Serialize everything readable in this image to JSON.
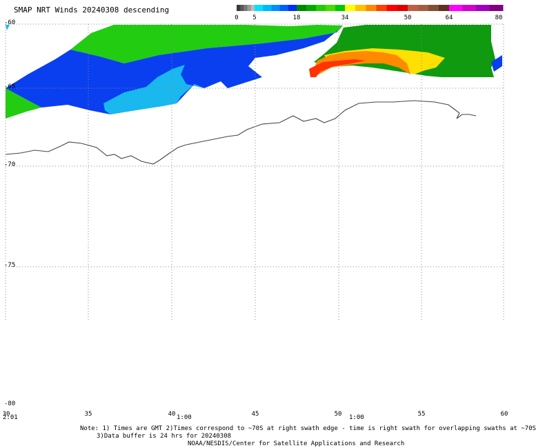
{
  "title": "SMAP NRT Winds  20240308 descending",
  "colorbar": {
    "labels": [
      "0",
      "5",
      "18",
      "34",
      "50",
      "64",
      "80"
    ],
    "segments": [
      {
        "value_range": [
          0,
          5
        ],
        "colors": [
          "#3a3a3a",
          "#5a5a5a",
          "#7a7a7a",
          "#9a9a9a",
          "#bdbdbd"
        ]
      },
      {
        "value_range": [
          5,
          18
        ],
        "colors": [
          "#00e0ff",
          "#00b8ff",
          "#0090ff",
          "#0060ff",
          "#0030f0"
        ]
      },
      {
        "value_range": [
          18,
          34
        ],
        "colors": [
          "#008800",
          "#00aa00",
          "#22cc00",
          "#44dd00",
          "#00c800"
        ]
      },
      {
        "value_range": [
          34,
          50
        ],
        "colors": [
          "#ffff00",
          "#ffc000",
          "#ff8800",
          "#ff4000",
          "#ff0000",
          "#e00000"
        ]
      },
      {
        "value_range": [
          50,
          64
        ],
        "colors": [
          "#c06040",
          "#a06040",
          "#805030",
          "#603020"
        ]
      },
      {
        "value_range": [
          64,
          80
        ],
        "colors": [
          "#ff00ff",
          "#d000d0",
          "#a000c0",
          "#800080"
        ]
      }
    ]
  },
  "map": {
    "lat_labels": [
      "-60",
      "-65",
      "-70",
      "-75",
      "-80"
    ],
    "lon_labels": [
      "30",
      "35",
      "40",
      "45",
      "50",
      "55",
      "60"
    ],
    "time_labels": [
      "2:01",
      "1:00",
      "1:00"
    ],
    "wind_colors": {
      "green": "#22cc11",
      "dark_green": "#0f9a0f",
      "blue": "#0a3ff0",
      "light_blue": "#19b8ee",
      "yellow": "#ffe000",
      "orange": "#ff8a00",
      "red": "#ff3300"
    },
    "coastline_color": "#444444",
    "grid_color": "#888888"
  },
  "notes": [
    "Note: 1) Times are GMT 2)Times correspond to ~70S at right swath edge - time is right swath for overlapping swaths at ~70S",
    "3)Data buffer is 24 hrs for 20240308",
    "NOAA/NESDIS/Center for Satellite Applications and Research"
  ]
}
